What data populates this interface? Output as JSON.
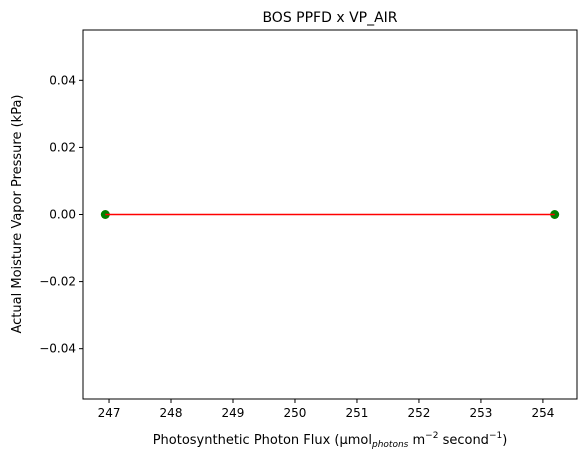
{
  "chart_data": {
    "type": "scatter",
    "title": "BOS PPFD x VP_AIR",
    "xlabel": {
      "base": "Photosynthetic Photon Flux (μmol",
      "sub": "photons",
      "mid": " m",
      "sup1": "−2",
      "mid2": " second",
      "sup2": "−1",
      "end": ")"
    },
    "ylabel": "Actual Moisture Vapor Pressure (kPa)",
    "xlim": [
      246.58,
      254.55
    ],
    "ylim": [
      -0.055,
      0.055
    ],
    "x_ticks": [
      247,
      248,
      249,
      250,
      251,
      252,
      253,
      254
    ],
    "y_ticks": [
      0.04,
      0.02,
      0.0,
      -0.02,
      -0.04
    ],
    "y_tick_labels": [
      "0.04",
      "0.02",
      "0.00",
      "−0.02",
      "−0.04"
    ],
    "grid": false,
    "series": [
      {
        "points": [
          {
            "x": 246.94,
            "y": 0.0
          },
          {
            "x": 254.19,
            "y": 0.0
          }
        ],
        "color": "#008000"
      }
    ],
    "fit_line": {
      "points": [
        {
          "x": 246.94,
          "y": 0.0
        },
        {
          "x": 254.19,
          "y": 0.0
        }
      ],
      "color": "#ff0000"
    }
  }
}
